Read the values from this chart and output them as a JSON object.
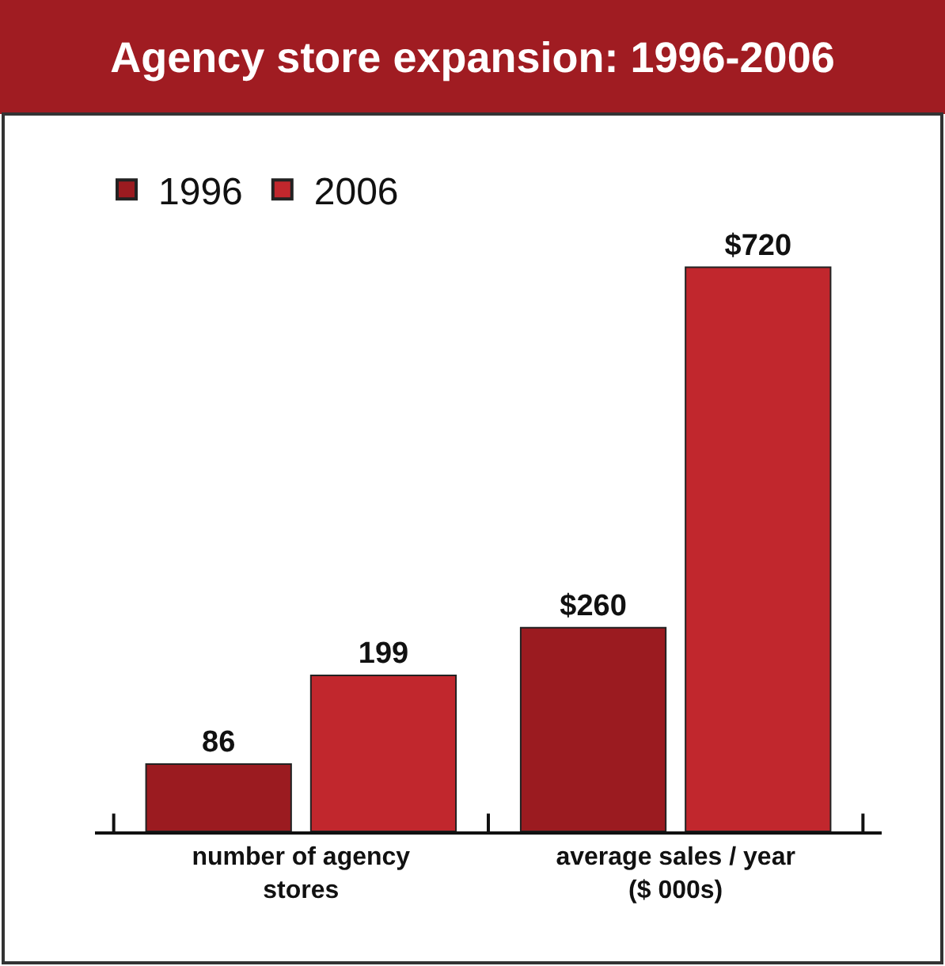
{
  "chart_data": {
    "type": "bar",
    "title": "Agency store expansion: 1996-2006",
    "categories": [
      "number of agency stores",
      "average sales / year ($ 000s)"
    ],
    "series": [
      {
        "name": "1996",
        "color": "#9b1b20",
        "values": [
          86,
          260
        ],
        "value_labels": [
          "86",
          "$260"
        ]
      },
      {
        "name": "2006",
        "color": "#c1272d",
        "values": [
          199,
          720
        ],
        "value_labels": [
          "199",
          "$720"
        ]
      }
    ],
    "legend": "top left",
    "tick_labels": "x"
  }
}
